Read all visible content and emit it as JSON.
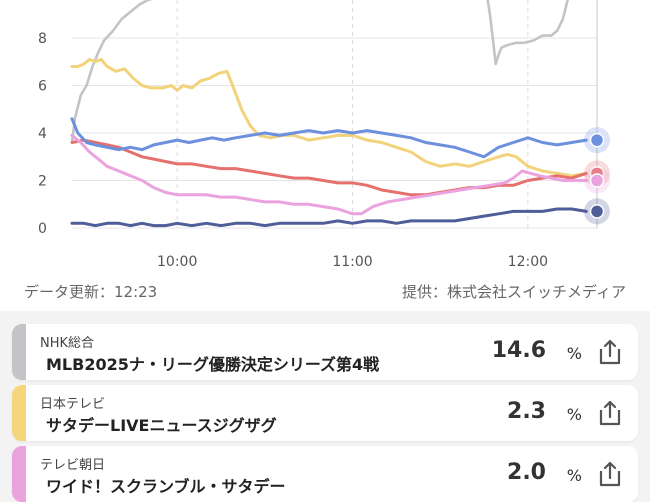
{
  "chart_data": {
    "type": "line",
    "y_ticks": [
      "0",
      "2",
      "4",
      "6",
      "8"
    ],
    "x_ticks": [
      "10:00",
      "11:00",
      "12:00"
    ],
    "ylim": [
      0,
      9.6
    ],
    "xlim": [
      "09:24",
      "12:24"
    ],
    "grid": true,
    "series": [
      {
        "color": "#c2c4c8",
        "points": [
          [
            "09:24",
            3.6
          ],
          [
            "09:25",
            4.6
          ],
          [
            "09:27",
            5.6
          ],
          [
            "09:29",
            6.0
          ],
          [
            "09:31",
            6.8
          ],
          [
            "09:33",
            7.4
          ],
          [
            "09:35",
            7.9
          ],
          [
            "09:38",
            8.3
          ],
          [
            "09:41",
            8.8
          ],
          [
            "09:44",
            9.1
          ],
          [
            "09:47",
            9.4
          ],
          [
            "09:50",
            9.6
          ],
          [
            "09:53",
            9.7
          ],
          [
            "09:55",
            9.8
          ],
          [
            "11:46",
            9.8
          ],
          [
            "11:47",
            9.0
          ],
          [
            "11:48",
            8.0
          ],
          [
            "11:49",
            6.9
          ],
          [
            "11:50",
            7.3
          ],
          [
            "11:51",
            7.6
          ],
          [
            "11:53",
            7.7
          ],
          [
            "11:56",
            7.8
          ],
          [
            "11:59",
            7.8
          ],
          [
            "12:02",
            7.9
          ],
          [
            "12:05",
            8.1
          ],
          [
            "12:08",
            8.1
          ],
          [
            "12:10",
            8.3
          ],
          [
            "12:12",
            8.8
          ],
          [
            "12:14",
            9.8
          ]
        ]
      },
      {
        "color": "#f2d27a",
        "points": [
          [
            "09:24",
            6.8
          ],
          [
            "09:26",
            6.8
          ],
          [
            "09:28",
            6.9
          ],
          [
            "09:30",
            7.1
          ],
          [
            "09:32",
            7.0
          ],
          [
            "09:34",
            7.1
          ],
          [
            "09:36",
            6.8
          ],
          [
            "09:39",
            6.6
          ],
          [
            "09:42",
            6.7
          ],
          [
            "09:45",
            6.3
          ],
          [
            "09:48",
            6.0
          ],
          [
            "09:51",
            5.9
          ],
          [
            "09:55",
            5.9
          ],
          [
            "09:58",
            6.0
          ],
          [
            "10:00",
            5.8
          ],
          [
            "10:02",
            6.0
          ],
          [
            "10:05",
            5.9
          ],
          [
            "10:08",
            6.2
          ],
          [
            "10:11",
            6.3
          ],
          [
            "10:14",
            6.5
          ],
          [
            "10:17",
            6.6
          ],
          [
            "10:19",
            6.0
          ],
          [
            "10:22",
            5.0
          ],
          [
            "10:25",
            4.3
          ],
          [
            "10:28",
            3.9
          ],
          [
            "10:32",
            3.8
          ],
          [
            "10:36",
            3.9
          ],
          [
            "10:40",
            3.9
          ],
          [
            "10:45",
            3.7
          ],
          [
            "10:50",
            3.8
          ],
          [
            "10:55",
            3.9
          ],
          [
            "11:00",
            3.9
          ],
          [
            "11:05",
            3.7
          ],
          [
            "11:10",
            3.6
          ],
          [
            "11:15",
            3.4
          ],
          [
            "11:20",
            3.2
          ],
          [
            "11:25",
            2.8
          ],
          [
            "11:30",
            2.6
          ],
          [
            "11:35",
            2.7
          ],
          [
            "11:40",
            2.6
          ],
          [
            "11:45",
            2.8
          ],
          [
            "11:50",
            3.0
          ],
          [
            "11:53",
            3.1
          ],
          [
            "11:56",
            3.0
          ],
          [
            "12:00",
            2.6
          ],
          [
            "12:05",
            2.4
          ],
          [
            "12:10",
            2.3
          ],
          [
            "12:15",
            2.2
          ],
          [
            "12:20",
            2.3
          ]
        ]
      },
      {
        "color": "#e5706d",
        "points": [
          [
            "09:24",
            3.6
          ],
          [
            "09:28",
            3.7
          ],
          [
            "09:32",
            3.6
          ],
          [
            "09:36",
            3.5
          ],
          [
            "09:40",
            3.4
          ],
          [
            "09:44",
            3.2
          ],
          [
            "09:48",
            3.0
          ],
          [
            "09:52",
            2.9
          ],
          [
            "09:56",
            2.8
          ],
          [
            "10:00",
            2.7
          ],
          [
            "10:05",
            2.7
          ],
          [
            "10:10",
            2.6
          ],
          [
            "10:15",
            2.5
          ],
          [
            "10:20",
            2.5
          ],
          [
            "10:25",
            2.4
          ],
          [
            "10:30",
            2.3
          ],
          [
            "10:35",
            2.2
          ],
          [
            "10:40",
            2.1
          ],
          [
            "10:45",
            2.1
          ],
          [
            "10:50",
            2.0
          ],
          [
            "10:55",
            1.9
          ],
          [
            "11:00",
            1.9
          ],
          [
            "11:05",
            1.8
          ],
          [
            "11:10",
            1.6
          ],
          [
            "11:15",
            1.5
          ],
          [
            "11:20",
            1.4
          ],
          [
            "11:25",
            1.4
          ],
          [
            "11:30",
            1.5
          ],
          [
            "11:35",
            1.6
          ],
          [
            "11:40",
            1.7
          ],
          [
            "11:45",
            1.7
          ],
          [
            "11:50",
            1.8
          ],
          [
            "11:55",
            1.8
          ],
          [
            "12:00",
            2.0
          ],
          [
            "12:05",
            2.1
          ],
          [
            "12:10",
            2.2
          ],
          [
            "12:15",
            2.1
          ],
          [
            "12:20",
            2.3
          ]
        ]
      },
      {
        "color": "#eaa3de",
        "points": [
          [
            "09:24",
            3.9
          ],
          [
            "09:27",
            3.6
          ],
          [
            "09:30",
            3.2
          ],
          [
            "09:33",
            2.9
          ],
          [
            "09:36",
            2.6
          ],
          [
            "09:40",
            2.4
          ],
          [
            "09:44",
            2.2
          ],
          [
            "09:48",
            2.0
          ],
          [
            "09:52",
            1.7
          ],
          [
            "09:56",
            1.5
          ],
          [
            "10:00",
            1.4
          ],
          [
            "10:05",
            1.4
          ],
          [
            "10:10",
            1.4
          ],
          [
            "10:15",
            1.3
          ],
          [
            "10:20",
            1.3
          ],
          [
            "10:25",
            1.2
          ],
          [
            "10:30",
            1.1
          ],
          [
            "10:35",
            1.1
          ],
          [
            "10:40",
            1.0
          ],
          [
            "10:45",
            1.0
          ],
          [
            "10:50",
            0.9
          ],
          [
            "10:55",
            0.8
          ],
          [
            "11:00",
            0.6
          ],
          [
            "11:03",
            0.6
          ],
          [
            "11:07",
            0.9
          ],
          [
            "11:12",
            1.1
          ],
          [
            "11:17",
            1.2
          ],
          [
            "11:22",
            1.3
          ],
          [
            "11:27",
            1.4
          ],
          [
            "11:32",
            1.5
          ],
          [
            "11:37",
            1.6
          ],
          [
            "11:42",
            1.7
          ],
          [
            "11:47",
            1.8
          ],
          [
            "11:52",
            1.9
          ],
          [
            "11:55",
            2.1
          ],
          [
            "11:58",
            2.4
          ],
          [
            "12:01",
            2.3
          ],
          [
            "12:04",
            2.2
          ],
          [
            "12:08",
            2.1
          ],
          [
            "12:12",
            2.0
          ],
          [
            "12:16",
            2.0
          ],
          [
            "12:20",
            2.0
          ]
        ]
      },
      {
        "color": "#6c90de",
        "points": [
          [
            "09:24",
            4.6
          ],
          [
            "09:26",
            4.0
          ],
          [
            "09:29",
            3.6
          ],
          [
            "09:32",
            3.5
          ],
          [
            "09:36",
            3.4
          ],
          [
            "09:40",
            3.3
          ],
          [
            "09:44",
            3.4
          ],
          [
            "09:48",
            3.3
          ],
          [
            "09:52",
            3.5
          ],
          [
            "09:56",
            3.6
          ],
          [
            "10:00",
            3.7
          ],
          [
            "10:04",
            3.6
          ],
          [
            "10:08",
            3.7
          ],
          [
            "10:12",
            3.8
          ],
          [
            "10:16",
            3.7
          ],
          [
            "10:20",
            3.8
          ],
          [
            "10:25",
            3.9
          ],
          [
            "10:30",
            4.0
          ],
          [
            "10:35",
            3.9
          ],
          [
            "10:40",
            4.0
          ],
          [
            "10:45",
            4.1
          ],
          [
            "10:50",
            4.0
          ],
          [
            "10:55",
            4.1
          ],
          [
            "11:00",
            4.0
          ],
          [
            "11:05",
            4.1
          ],
          [
            "11:10",
            4.0
          ],
          [
            "11:15",
            3.9
          ],
          [
            "11:20",
            3.8
          ],
          [
            "11:25",
            3.6
          ],
          [
            "11:30",
            3.5
          ],
          [
            "11:35",
            3.4
          ],
          [
            "11:40",
            3.2
          ],
          [
            "11:45",
            3.0
          ],
          [
            "11:50",
            3.4
          ],
          [
            "11:55",
            3.6
          ],
          [
            "12:00",
            3.8
          ],
          [
            "12:05",
            3.6
          ],
          [
            "12:10",
            3.5
          ],
          [
            "12:15",
            3.6
          ],
          [
            "12:20",
            3.7
          ]
        ]
      },
      {
        "color": "#4f5d99",
        "points": [
          [
            "09:24",
            0.2
          ],
          [
            "09:28",
            0.2
          ],
          [
            "09:32",
            0.1
          ],
          [
            "09:36",
            0.2
          ],
          [
            "09:40",
            0.2
          ],
          [
            "09:44",
            0.1
          ],
          [
            "09:48",
            0.2
          ],
          [
            "09:52",
            0.1
          ],
          [
            "09:56",
            0.1
          ],
          [
            "10:00",
            0.2
          ],
          [
            "10:05",
            0.1
          ],
          [
            "10:10",
            0.2
          ],
          [
            "10:15",
            0.1
          ],
          [
            "10:20",
            0.2
          ],
          [
            "10:25",
            0.2
          ],
          [
            "10:30",
            0.1
          ],
          [
            "10:35",
            0.2
          ],
          [
            "10:40",
            0.2
          ],
          [
            "10:45",
            0.2
          ],
          [
            "10:50",
            0.2
          ],
          [
            "10:55",
            0.3
          ],
          [
            "11:00",
            0.2
          ],
          [
            "11:05",
            0.3
          ],
          [
            "11:10",
            0.3
          ],
          [
            "11:15",
            0.2
          ],
          [
            "11:20",
            0.3
          ],
          [
            "11:25",
            0.3
          ],
          [
            "11:30",
            0.3
          ],
          [
            "11:35",
            0.3
          ],
          [
            "11:40",
            0.4
          ],
          [
            "11:45",
            0.5
          ],
          [
            "11:50",
            0.6
          ],
          [
            "11:55",
            0.7
          ],
          [
            "12:00",
            0.7
          ],
          [
            "12:05",
            0.7
          ],
          [
            "12:10",
            0.8
          ],
          [
            "12:15",
            0.8
          ],
          [
            "12:20",
            0.7
          ]
        ]
      }
    ],
    "current_markers": [
      {
        "y": 3.7,
        "color": "#6c90de"
      },
      {
        "y": 2.3,
        "color": "#e5706d"
      },
      {
        "y": 2.0,
        "color": "#eaa3de"
      },
      {
        "y": 0.7,
        "color": "#4f5d99"
      }
    ]
  },
  "meta": {
    "updated": "データ更新：12:23",
    "provider": "提供：株式会社スイッチメディア"
  },
  "channels": [
    {
      "channel": "NHK総合",
      "program": "MLB2025ナ・リーグ優勝決定シリーズ第4戦",
      "rating": "14.6",
      "unit": "%",
      "color": "#c2c4c8"
    },
    {
      "channel": "日本テレビ",
      "program": "サタデーLIVEニュースジグザグ",
      "rating": "2.3",
      "unit": "%",
      "color": "#f5d67b"
    },
    {
      "channel": "テレビ朝日",
      "program": "ワイド！スクランブル・サタデー",
      "rating": "2.0",
      "unit": "%",
      "color": "#eaa3de"
    }
  ]
}
